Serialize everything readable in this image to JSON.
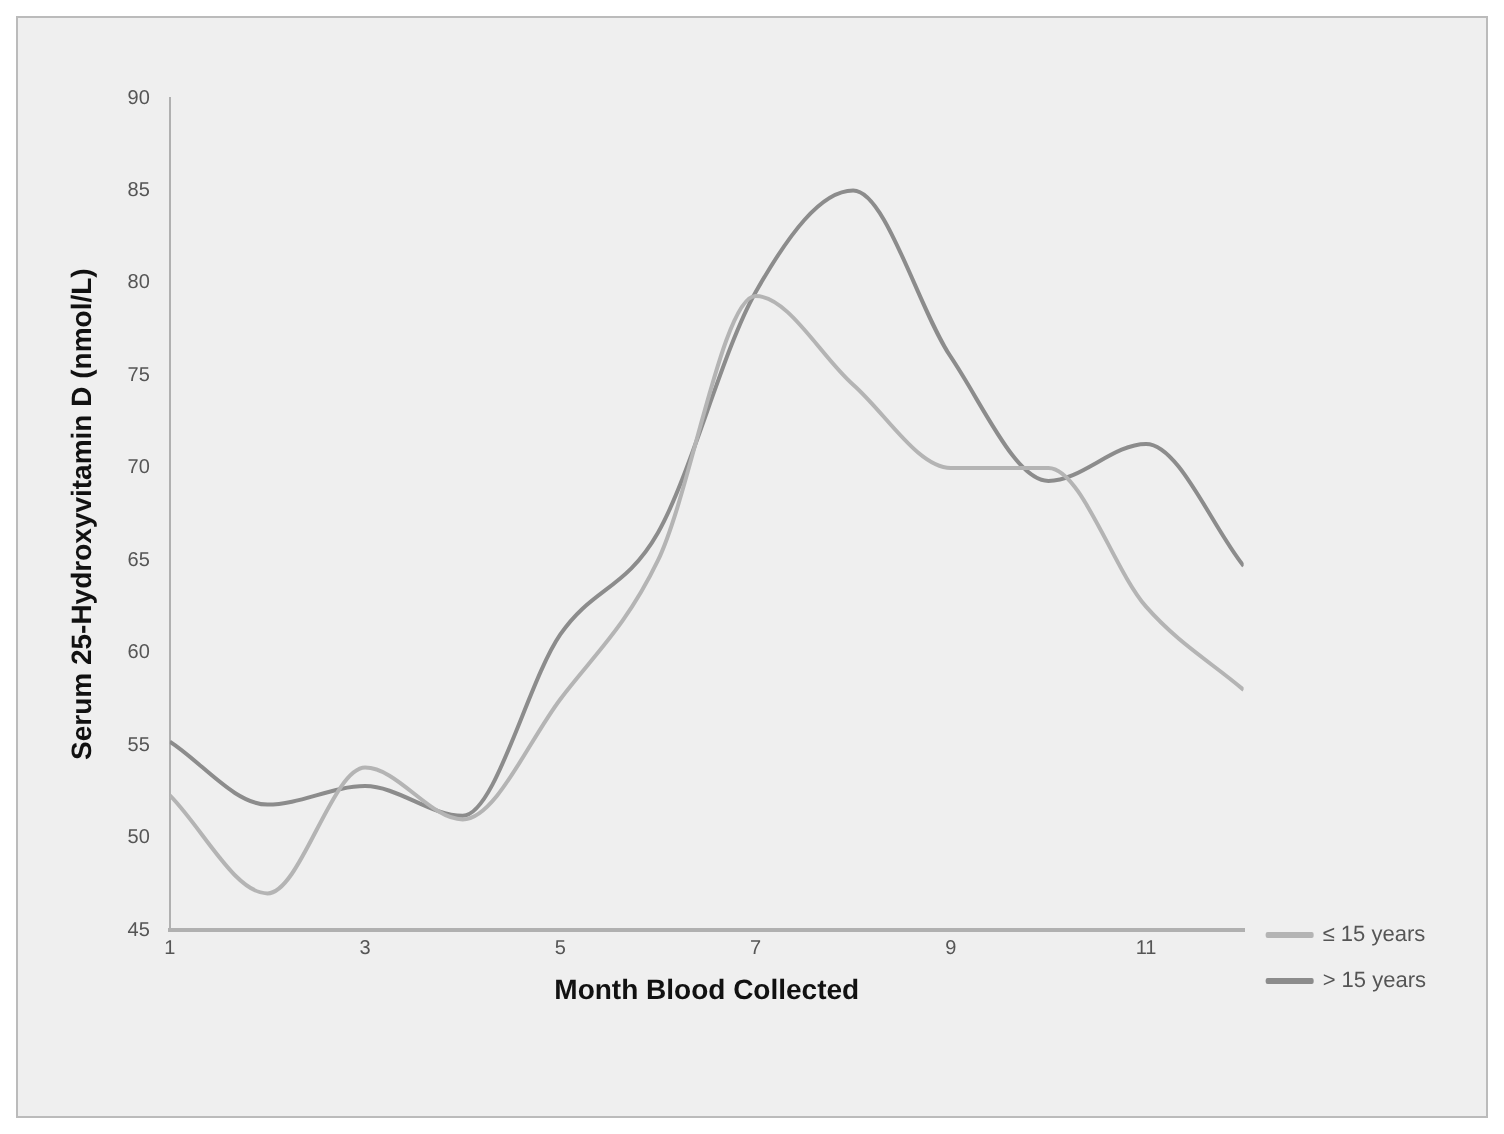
{
  "chart_data": {
    "type": "line",
    "xlabel": "Month Blood Collected",
    "ylabel": "Serum 25-Hydroxyvitamin D (nmol/L)",
    "x": [
      1,
      2,
      3,
      4,
      5,
      6,
      7,
      8,
      9,
      10,
      11,
      12
    ],
    "xlim": [
      1,
      12
    ],
    "xticks": [
      1,
      3,
      5,
      7,
      9,
      11
    ],
    "ylim": [
      45,
      90
    ],
    "yticks": [
      45,
      50,
      55,
      60,
      65,
      70,
      75,
      80,
      85,
      90
    ],
    "grid": false,
    "legend": "right",
    "marker": "none",
    "line_style": "solid",
    "series": [
      {
        "name": "≤ 15 years",
        "color": "#b4b4b4",
        "values": [
          52.3,
          47,
          53.8,
          51,
          57.5,
          65,
          79.3,
          74.5,
          70,
          70,
          62.5,
          58
        ]
      },
      {
        "name": "> 15 years",
        "color": "#8c8c8c",
        "values": [
          55.2,
          51.8,
          52.8,
          51.2,
          61,
          66.5,
          79.5,
          85,
          76,
          69.3,
          71.3,
          64.7
        ]
      }
    ]
  }
}
